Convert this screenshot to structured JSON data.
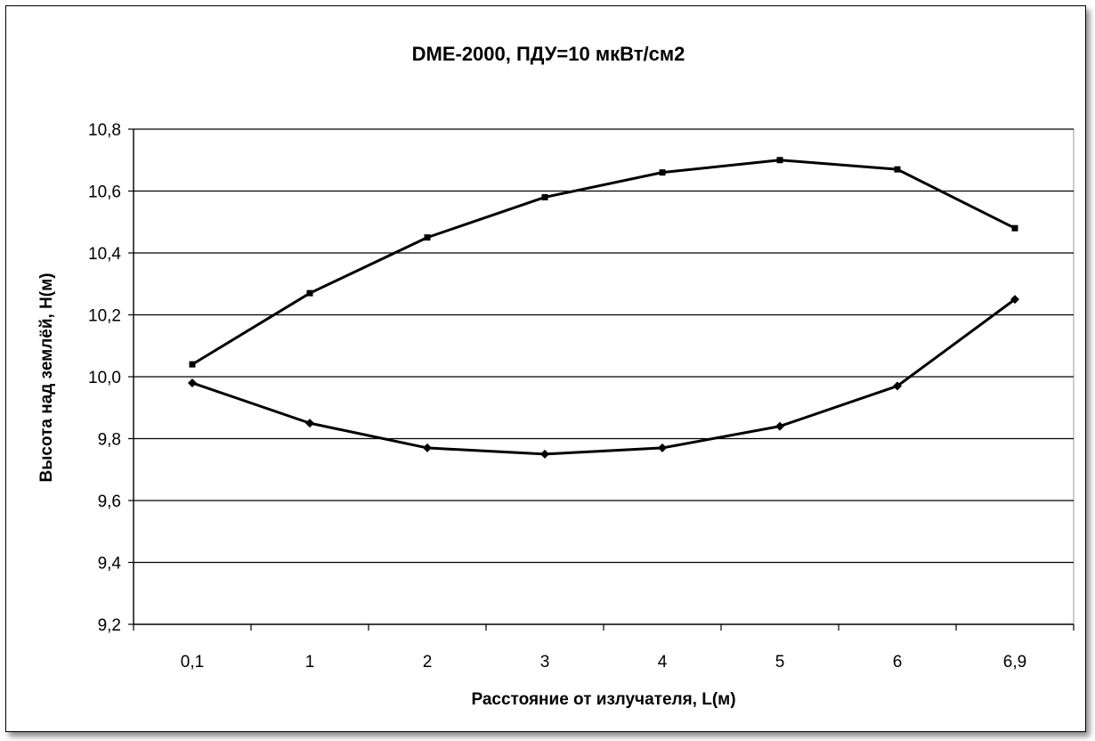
{
  "chart_data": {
    "type": "line",
    "title": "DME-2000,  ПДУ=10 мкВт/см2",
    "xlabel": "Расстояние от излучателя, L(м)",
    "ylabel": "Высота над землёй, H(м)",
    "categories": [
      "0,1",
      "1",
      "2",
      "3",
      "4",
      "5",
      "6",
      "6,9"
    ],
    "ylim": [
      9.2,
      10.8
    ],
    "ytick_step": 0.2,
    "grid": "horizontal",
    "series": [
      {
        "values": [
          10.04,
          10.27,
          10.45,
          10.58,
          10.66,
          10.7,
          10.67,
          10.48
        ],
        "color": "#000000",
        "marker": "square"
      },
      {
        "values": [
          9.98,
          9.85,
          9.77,
          9.75,
          9.77,
          9.84,
          9.97,
          10.25
        ],
        "color": "#000000",
        "marker": "diamond"
      }
    ]
  }
}
